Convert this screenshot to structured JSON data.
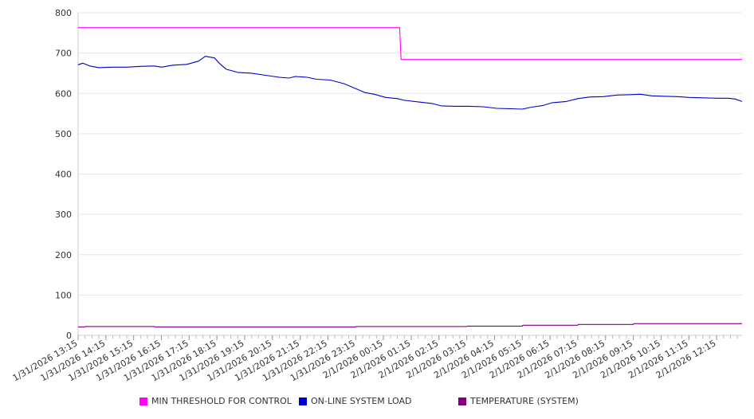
{
  "chart_data": {
    "type": "line",
    "ylim": [
      0,
      800
    ],
    "y_ticks": [
      0,
      100,
      200,
      300,
      400,
      500,
      600,
      700,
      800
    ],
    "x_tick_labels": [
      "1/31/2026 13:15",
      "1/31/2026 14:15",
      "1/31/2026 15:15",
      "1/31/2026 16:15",
      "1/31/2026 17:15",
      "1/31/2026 18:15",
      "1/31/2026 19:15",
      "1/31/2026 20:15",
      "1/31/2026 21:15",
      "1/31/2026 22:15",
      "1/31/2026 23:15",
      "2/1/2026 00:15",
      "2/1/2026 01:15",
      "2/1/2026 02:15",
      "2/1/2026 03:15",
      "2/1/2026 04:15",
      "2/1/2026 05:15",
      "2/1/2026 06:15",
      "2/1/2026 07:15",
      "2/1/2026 08:15",
      "2/1/2026 09:15",
      "2/1/2026 10:15",
      "2/1/2026 11:15",
      "2/1/2026 12:15"
    ],
    "x_range": [
      "1/31/2026 13:15",
      "2/1/2026 13:10"
    ],
    "grid": true,
    "legend_position": "bottom",
    "series": [
      {
        "name": "MIN THRESHOLD FOR CONTROL",
        "color": "#ff00ff",
        "points": [
          [
            "1/31/2026 13:15",
            763
          ],
          [
            "2/1/2026 00:50",
            763
          ],
          [
            "2/1/2026 00:53",
            684
          ],
          [
            "2/1/2026 13:10",
            684
          ]
        ]
      },
      {
        "name": "ON-LINE SYSTEM LOAD",
        "color": "#0000cc",
        "points": [
          [
            "1/31/2026 13:15",
            671
          ],
          [
            "1/31/2026 13:25",
            675
          ],
          [
            "1/31/2026 13:40",
            668
          ],
          [
            "1/31/2026 14:00",
            664
          ],
          [
            "1/31/2026 14:30",
            665
          ],
          [
            "1/31/2026 15:00",
            665
          ],
          [
            "1/31/2026 15:30",
            667
          ],
          [
            "1/31/2026 16:00",
            668
          ],
          [
            "1/31/2026 16:15",
            665
          ],
          [
            "1/31/2026 16:40",
            670
          ],
          [
            "1/31/2026 17:10",
            672
          ],
          [
            "1/31/2026 17:35",
            680
          ],
          [
            "1/31/2026 17:50",
            692
          ],
          [
            "1/31/2026 18:10",
            688
          ],
          [
            "1/31/2026 18:20",
            675
          ],
          [
            "1/31/2026 18:35",
            660
          ],
          [
            "1/31/2026 19:00",
            652
          ],
          [
            "1/31/2026 19:30",
            650
          ],
          [
            "1/31/2026 20:00",
            645
          ],
          [
            "1/31/2026 20:30",
            640
          ],
          [
            "1/31/2026 20:50",
            638
          ],
          [
            "1/31/2026 21:05",
            642
          ],
          [
            "1/31/2026 21:30",
            640
          ],
          [
            "1/31/2026 21:50",
            635
          ],
          [
            "1/31/2026 22:20",
            633
          ],
          [
            "1/31/2026 22:50",
            624
          ],
          [
            "1/31/2026 23:15",
            612
          ],
          [
            "1/31/2026 23:35",
            602
          ],
          [
            "1/31/2026 23:55",
            598
          ],
          [
            "2/1/2026 00:20",
            590
          ],
          [
            "2/1/2026 00:45",
            587
          ],
          [
            "2/1/2026 01:00",
            583
          ],
          [
            "2/1/2026 01:30",
            579
          ],
          [
            "2/1/2026 02:00",
            575
          ],
          [
            "2/1/2026 02:20",
            569
          ],
          [
            "2/1/2026 02:50",
            568
          ],
          [
            "2/1/2026 03:20",
            568
          ],
          [
            "2/1/2026 03:50",
            567
          ],
          [
            "2/1/2026 04:20",
            563
          ],
          [
            "2/1/2026 04:50",
            562
          ],
          [
            "2/1/2026 05:15",
            561
          ],
          [
            "2/1/2026 05:35",
            566
          ],
          [
            "2/1/2026 06:00",
            570
          ],
          [
            "2/1/2026 06:20",
            577
          ],
          [
            "2/1/2026 06:50",
            580
          ],
          [
            "2/1/2026 07:15",
            587
          ],
          [
            "2/1/2026 07:40",
            591
          ],
          [
            "2/1/2026 08:10",
            592
          ],
          [
            "2/1/2026 08:40",
            596
          ],
          [
            "2/1/2026 09:10",
            597
          ],
          [
            "2/1/2026 09:30",
            598
          ],
          [
            "2/1/2026 09:55",
            594
          ],
          [
            "2/1/2026 10:20",
            593
          ],
          [
            "2/1/2026 10:50",
            592
          ],
          [
            "2/1/2026 11:15",
            590
          ],
          [
            "2/1/2026 11:45",
            589
          ],
          [
            "2/1/2026 12:15",
            588
          ],
          [
            "2/1/2026 12:40",
            588
          ],
          [
            "2/1/2026 12:55",
            586
          ],
          [
            "2/1/2026 13:10",
            580
          ]
        ]
      },
      {
        "name": "TEMPERATURE (SYSTEM)",
        "color": "#800080",
        "points": [
          [
            "1/31/2026 13:15",
            21
          ],
          [
            "1/31/2026 13:30",
            21
          ],
          [
            "1/31/2026 13:31",
            22
          ],
          [
            "1/31/2026 16:00",
            22
          ],
          [
            "1/31/2026 16:01",
            21
          ],
          [
            "1/31/2026 23:15",
            21
          ],
          [
            "1/31/2026 23:16",
            22
          ],
          [
            "2/1/2026 03:15",
            22
          ],
          [
            "2/1/2026 03:16",
            23
          ],
          [
            "2/1/2026 05:15",
            23
          ],
          [
            "2/1/2026 05:16",
            25
          ],
          [
            "2/1/2026 07:15",
            25
          ],
          [
            "2/1/2026 07:16",
            27
          ],
          [
            "2/1/2026 09:15",
            27
          ],
          [
            "2/1/2026 09:16",
            29
          ],
          [
            "2/1/2026 13:10",
            29
          ]
        ]
      }
    ]
  }
}
